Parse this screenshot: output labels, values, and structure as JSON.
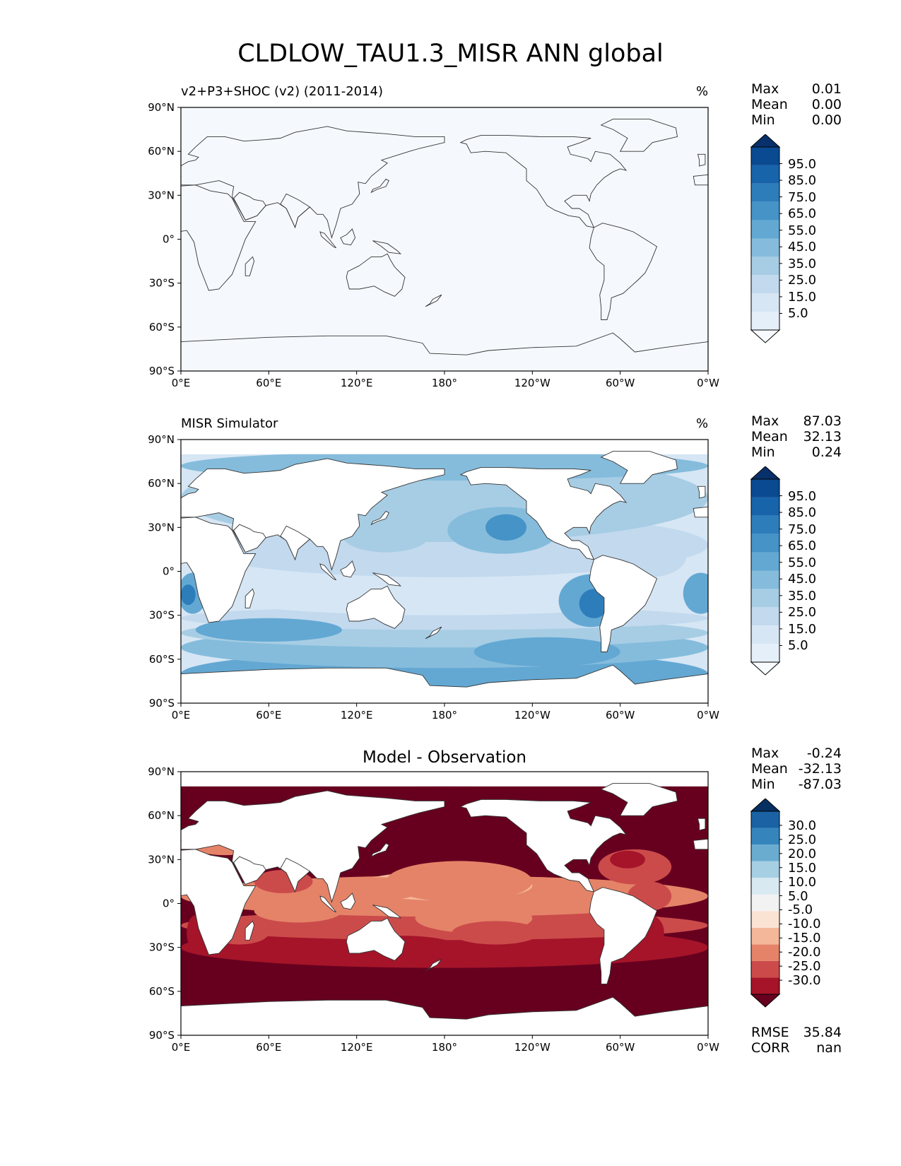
{
  "title": "CLDLOW_TAU1.3_MISR ANN global",
  "lat_ticks": [
    "90°N",
    "60°N",
    "30°N",
    "0°",
    "30°S",
    "60°S",
    "90°S"
  ],
  "lon_ticks": [
    "0°E",
    "60°E",
    "120°E",
    "180°",
    "120°W",
    "60°W",
    "0°W"
  ],
  "colors": {
    "land_outline": "#333333",
    "test_field": "#f5f9fe",
    "blues": [
      "#f7fbff",
      "#e5eff9",
      "#d6e6f4",
      "#c2d9ee",
      "#a7cde4",
      "#85bcdc",
      "#63a8d3",
      "#4593c7",
      "#2d7dbb",
      "#1764ab",
      "#0a4a91",
      "#08306b"
    ],
    "diverging": [
      "#67001f",
      "#a51429",
      "#cb4b4b",
      "#e58368",
      "#f5b799",
      "#fbe3d4",
      "#f2f2f2",
      "#d8e9f1",
      "#a6cfe4",
      "#6aacd0",
      "#3585bc",
      "#1b62a4",
      "#053061"
    ]
  },
  "panels": [
    {
      "id": "test",
      "title": "v2+P3+SHOC (v2) (2011-2014)",
      "units": "%",
      "stats": [
        {
          "label": "Max",
          "value": "0.01"
        },
        {
          "label": "Mean",
          "value": "0.00"
        },
        {
          "label": "Min",
          "value": "0.00"
        }
      ],
      "colorbar_labels": [
        "95.0",
        "85.0",
        "75.0",
        "65.0",
        "55.0",
        "45.0",
        "35.0",
        "25.0",
        "15.0",
        "5.0"
      ]
    },
    {
      "id": "ref",
      "title": "MISR Simulator",
      "units": "%",
      "stats": [
        {
          "label": "Max",
          "value": "87.03"
        },
        {
          "label": "Mean",
          "value": "32.13"
        },
        {
          "label": "Min",
          "value": "0.24"
        }
      ],
      "colorbar_labels": [
        "95.0",
        "85.0",
        "75.0",
        "65.0",
        "55.0",
        "45.0",
        "35.0",
        "25.0",
        "15.0",
        "5.0"
      ]
    },
    {
      "id": "diff",
      "title": "Model - Observation",
      "units": "",
      "stats": [
        {
          "label": "Max",
          "value": "-0.24"
        },
        {
          "label": "Mean",
          "value": "-32.13"
        },
        {
          "label": "Min",
          "value": "-87.03"
        }
      ],
      "colorbar_labels": [
        "30.0",
        "25.0",
        "20.0",
        "15.0",
        "10.0",
        "5.0",
        "-5.0",
        "-10.0",
        "-15.0",
        "-20.0",
        "-25.0",
        "-30.0"
      ],
      "extra_stats": [
        {
          "label": "RMSE",
          "value": "35.84"
        },
        {
          "label": "CORR",
          "value": "nan"
        }
      ]
    }
  ]
}
